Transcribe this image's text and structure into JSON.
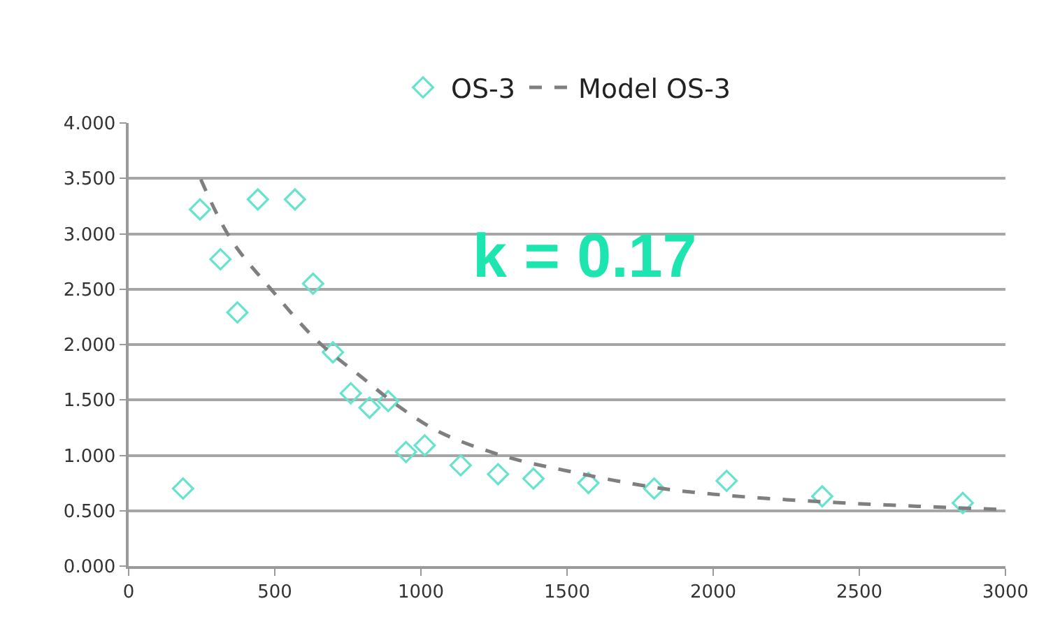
{
  "chart_data": {
    "type": "scatter",
    "legend": "top",
    "grid": "y",
    "xlim": [
      0,
      3000
    ],
    "xticks": [
      0,
      500,
      1000,
      1500,
      2000,
      2500,
      3000
    ],
    "ylim": [
      0,
      4
    ],
    "yticks": [
      {
        "value": 0,
        "label": "0.000"
      },
      {
        "value": 0.5,
        "label": "0.500"
      },
      {
        "value": 1,
        "label": "1.000"
      },
      {
        "value": 1.5,
        "label": "1.500"
      },
      {
        "value": 2,
        "label": "2.000"
      },
      {
        "value": 2.5,
        "label": "2.500"
      },
      {
        "value": 3,
        "label": "3.000"
      },
      {
        "value": 3.5,
        "label": "3.500"
      },
      {
        "value": 4,
        "label": "4.000"
      }
    ],
    "annotations": [
      "k = 0.17"
    ],
    "series": [
      {
        "name": "OS-3",
        "marker": "diamond",
        "color": "#66e3cc",
        "x": [
          186,
          244,
          314,
          372,
          442,
          569,
          631,
          699,
          760,
          824,
          888,
          949,
          1013,
          1136,
          1264,
          1385,
          1573,
          1798,
          2046,
          2373,
          2854
        ],
        "values": [
          0.7,
          3.22,
          2.77,
          2.29,
          3.31,
          3.31,
          2.55,
          1.93,
          1.56,
          1.43,
          1.49,
          1.03,
          1.09,
          0.91,
          0.83,
          0.79,
          0.75,
          0.7,
          0.77,
          0.63,
          0.57
        ]
      },
      {
        "name": "Model OS-3",
        "type": "line",
        "line_style": "dashed",
        "color": "#7f7f7f",
        "x": [
          247,
          350,
          487,
          647,
          800,
          920,
          1064,
          1288,
          1500,
          1800,
          2041,
          2378,
          2700,
          3000
        ],
        "values": [
          3.49,
          2.95,
          2.5,
          2.03,
          1.7,
          1.45,
          1.21,
          0.99,
          0.86,
          0.71,
          0.64,
          0.58,
          0.54,
          0.51
        ]
      }
    ]
  }
}
